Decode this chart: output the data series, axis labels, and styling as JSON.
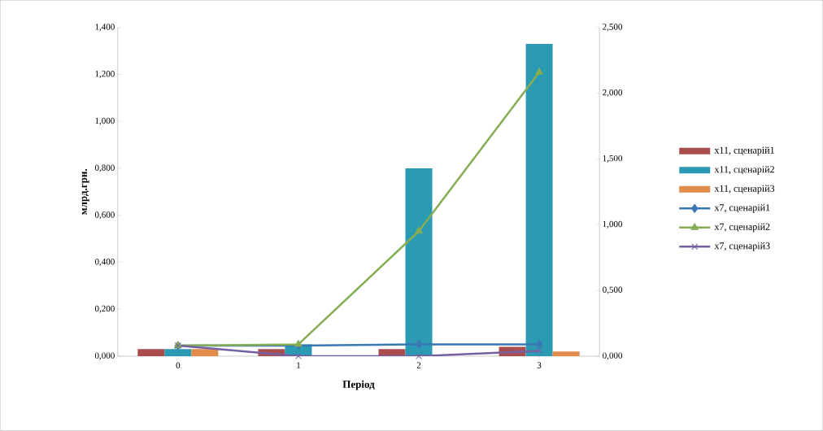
{
  "chart_data": {
    "type": "bar",
    "xlabel": "Період",
    "ylabel": "млрд.грн.",
    "categories": [
      "0",
      "1",
      "2",
      "3"
    ],
    "series": [
      {
        "name": "x11, сценарій1",
        "color": "#a94d4f",
        "values": [
          0.03,
          0.03,
          0.03,
          0.04
        ]
      },
      {
        "name": "x11, сценарій2",
        "color": "#2b9bb3",
        "values": [
          0.03,
          0.05,
          0.8,
          1.33
        ]
      },
      {
        "name": "x11, сценарій3",
        "color": "#e38b4a",
        "values": [
          0.03,
          0,
          0,
          0.02
        ]
      },
      {
        "name": "x7, сценарій1",
        "type": "line",
        "axis": "y2",
        "marker": "diamond",
        "color": "#3a78b5",
        "values": [
          0.08,
          0.08,
          0.09,
          0.09
        ]
      },
      {
        "name": "x7, сценарій2",
        "type": "line",
        "axis": "y2",
        "marker": "triangle",
        "color": "#86ac54",
        "values": [
          0.08,
          0.09,
          0.95,
          2.16
        ]
      },
      {
        "name": "x7, сценарій3",
        "type": "line",
        "axis": "y2",
        "marker": "cross",
        "color": "#7460a0",
        "values": [
          0.08,
          0,
          0,
          0.04
        ]
      }
    ],
    "ylim": [
      0,
      1.4
    ],
    "yticks": [
      {
        "value": 0,
        "label": "0,000"
      },
      {
        "value": 0.2,
        "label": "0,200"
      },
      {
        "value": 0.4,
        "label": "0,400"
      },
      {
        "value": 0.6,
        "label": "0,600"
      },
      {
        "value": 0.8,
        "label": "0,800"
      },
      {
        "value": 1.0,
        "label": "1,000"
      },
      {
        "value": 1.2,
        "label": "1,200"
      },
      {
        "value": 1.4,
        "label": "1,400"
      }
    ],
    "y2lim": [
      0,
      2.5
    ],
    "y2ticks": [
      {
        "value": 0,
        "label": "0,000"
      },
      {
        "value": 0.5,
        "label": "0,500"
      },
      {
        "value": 1.0,
        "label": "1,000"
      },
      {
        "value": 1.5,
        "label": "1,500"
      },
      {
        "value": 2.0,
        "label": "2,000"
      },
      {
        "value": 2.5,
        "label": "2,500"
      }
    ],
    "legend": "right",
    "line_style": "solid"
  }
}
